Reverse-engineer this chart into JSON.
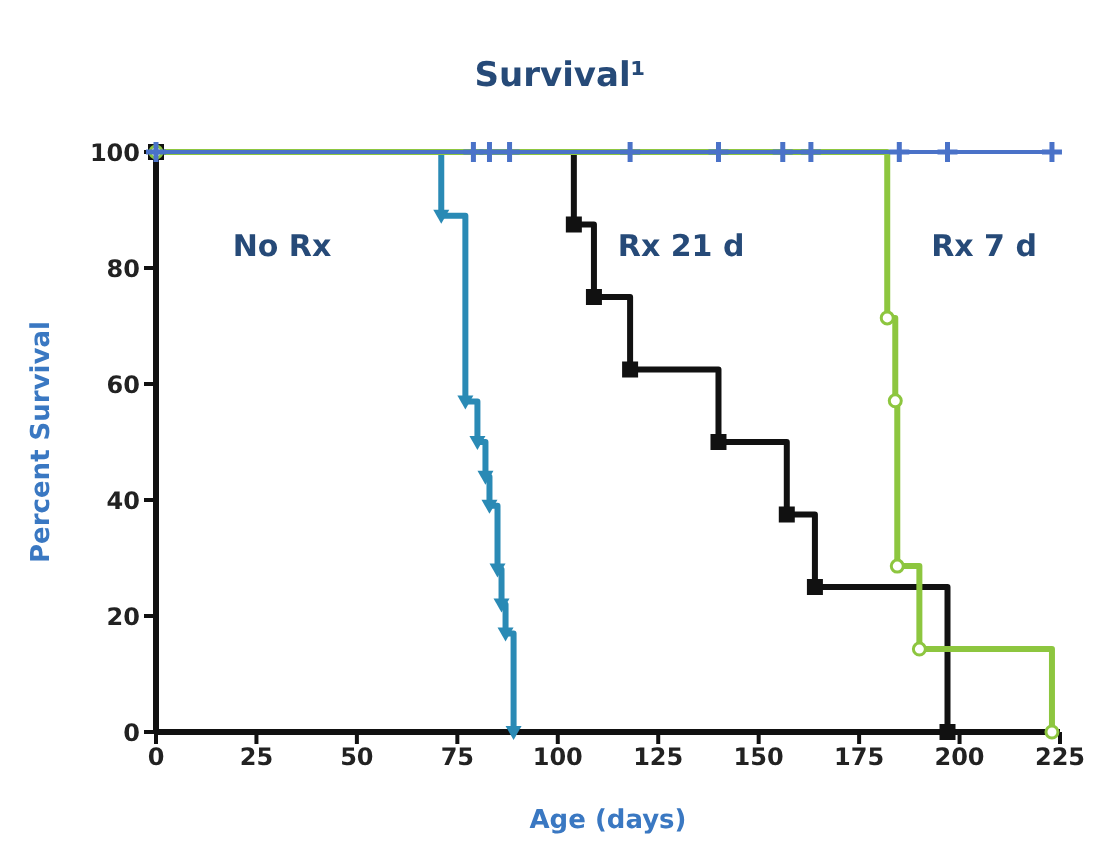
{
  "chart_data": {
    "type": "step",
    "title": "Survival¹",
    "xlabel": "Age (days)",
    "ylabel": "Percent Survival",
    "xlim": [
      0,
      225
    ],
    "xticks": [
      0,
      25,
      50,
      75,
      100,
      125,
      150,
      175,
      200,
      225
    ],
    "ylim": [
      0,
      100
    ],
    "yticks": [
      0,
      20,
      40,
      60,
      80,
      100
    ],
    "grid": false,
    "legend": false,
    "line_style": "solid",
    "series": [
      {
        "color": "#4a72c8",
        "marker": "cross",
        "x": [
          0,
          79,
          83,
          88,
          118,
          140,
          156,
          163,
          185,
          197,
          223
        ],
        "values": [
          100,
          100,
          100,
          100,
          100,
          100,
          100,
          100,
          100,
          100,
          100
        ]
      },
      {
        "name": "No Rx",
        "color": "#2a8ab5",
        "marker": "triangle",
        "x": [
          0,
          71,
          77,
          80,
          82,
          83,
          85,
          86,
          87,
          89
        ],
        "values": [
          100,
          89,
          57,
          50,
          44,
          39,
          28,
          22,
          17,
          0
        ]
      },
      {
        "name": "Rx 21 d",
        "color": "#111111",
        "marker": "square",
        "x": [
          0,
          104,
          109,
          118,
          140,
          157,
          164,
          197
        ],
        "values": [
          100,
          87.5,
          75,
          62.5,
          50,
          37.5,
          25,
          0
        ]
      },
      {
        "name": "Rx 7 d",
        "color": "#8dc63f",
        "marker": "circle",
        "x": [
          0,
          182,
          184,
          184.5,
          190,
          223
        ],
        "values": [
          100,
          71.4,
          57.1,
          28.6,
          14.3,
          0
        ]
      }
    ]
  }
}
